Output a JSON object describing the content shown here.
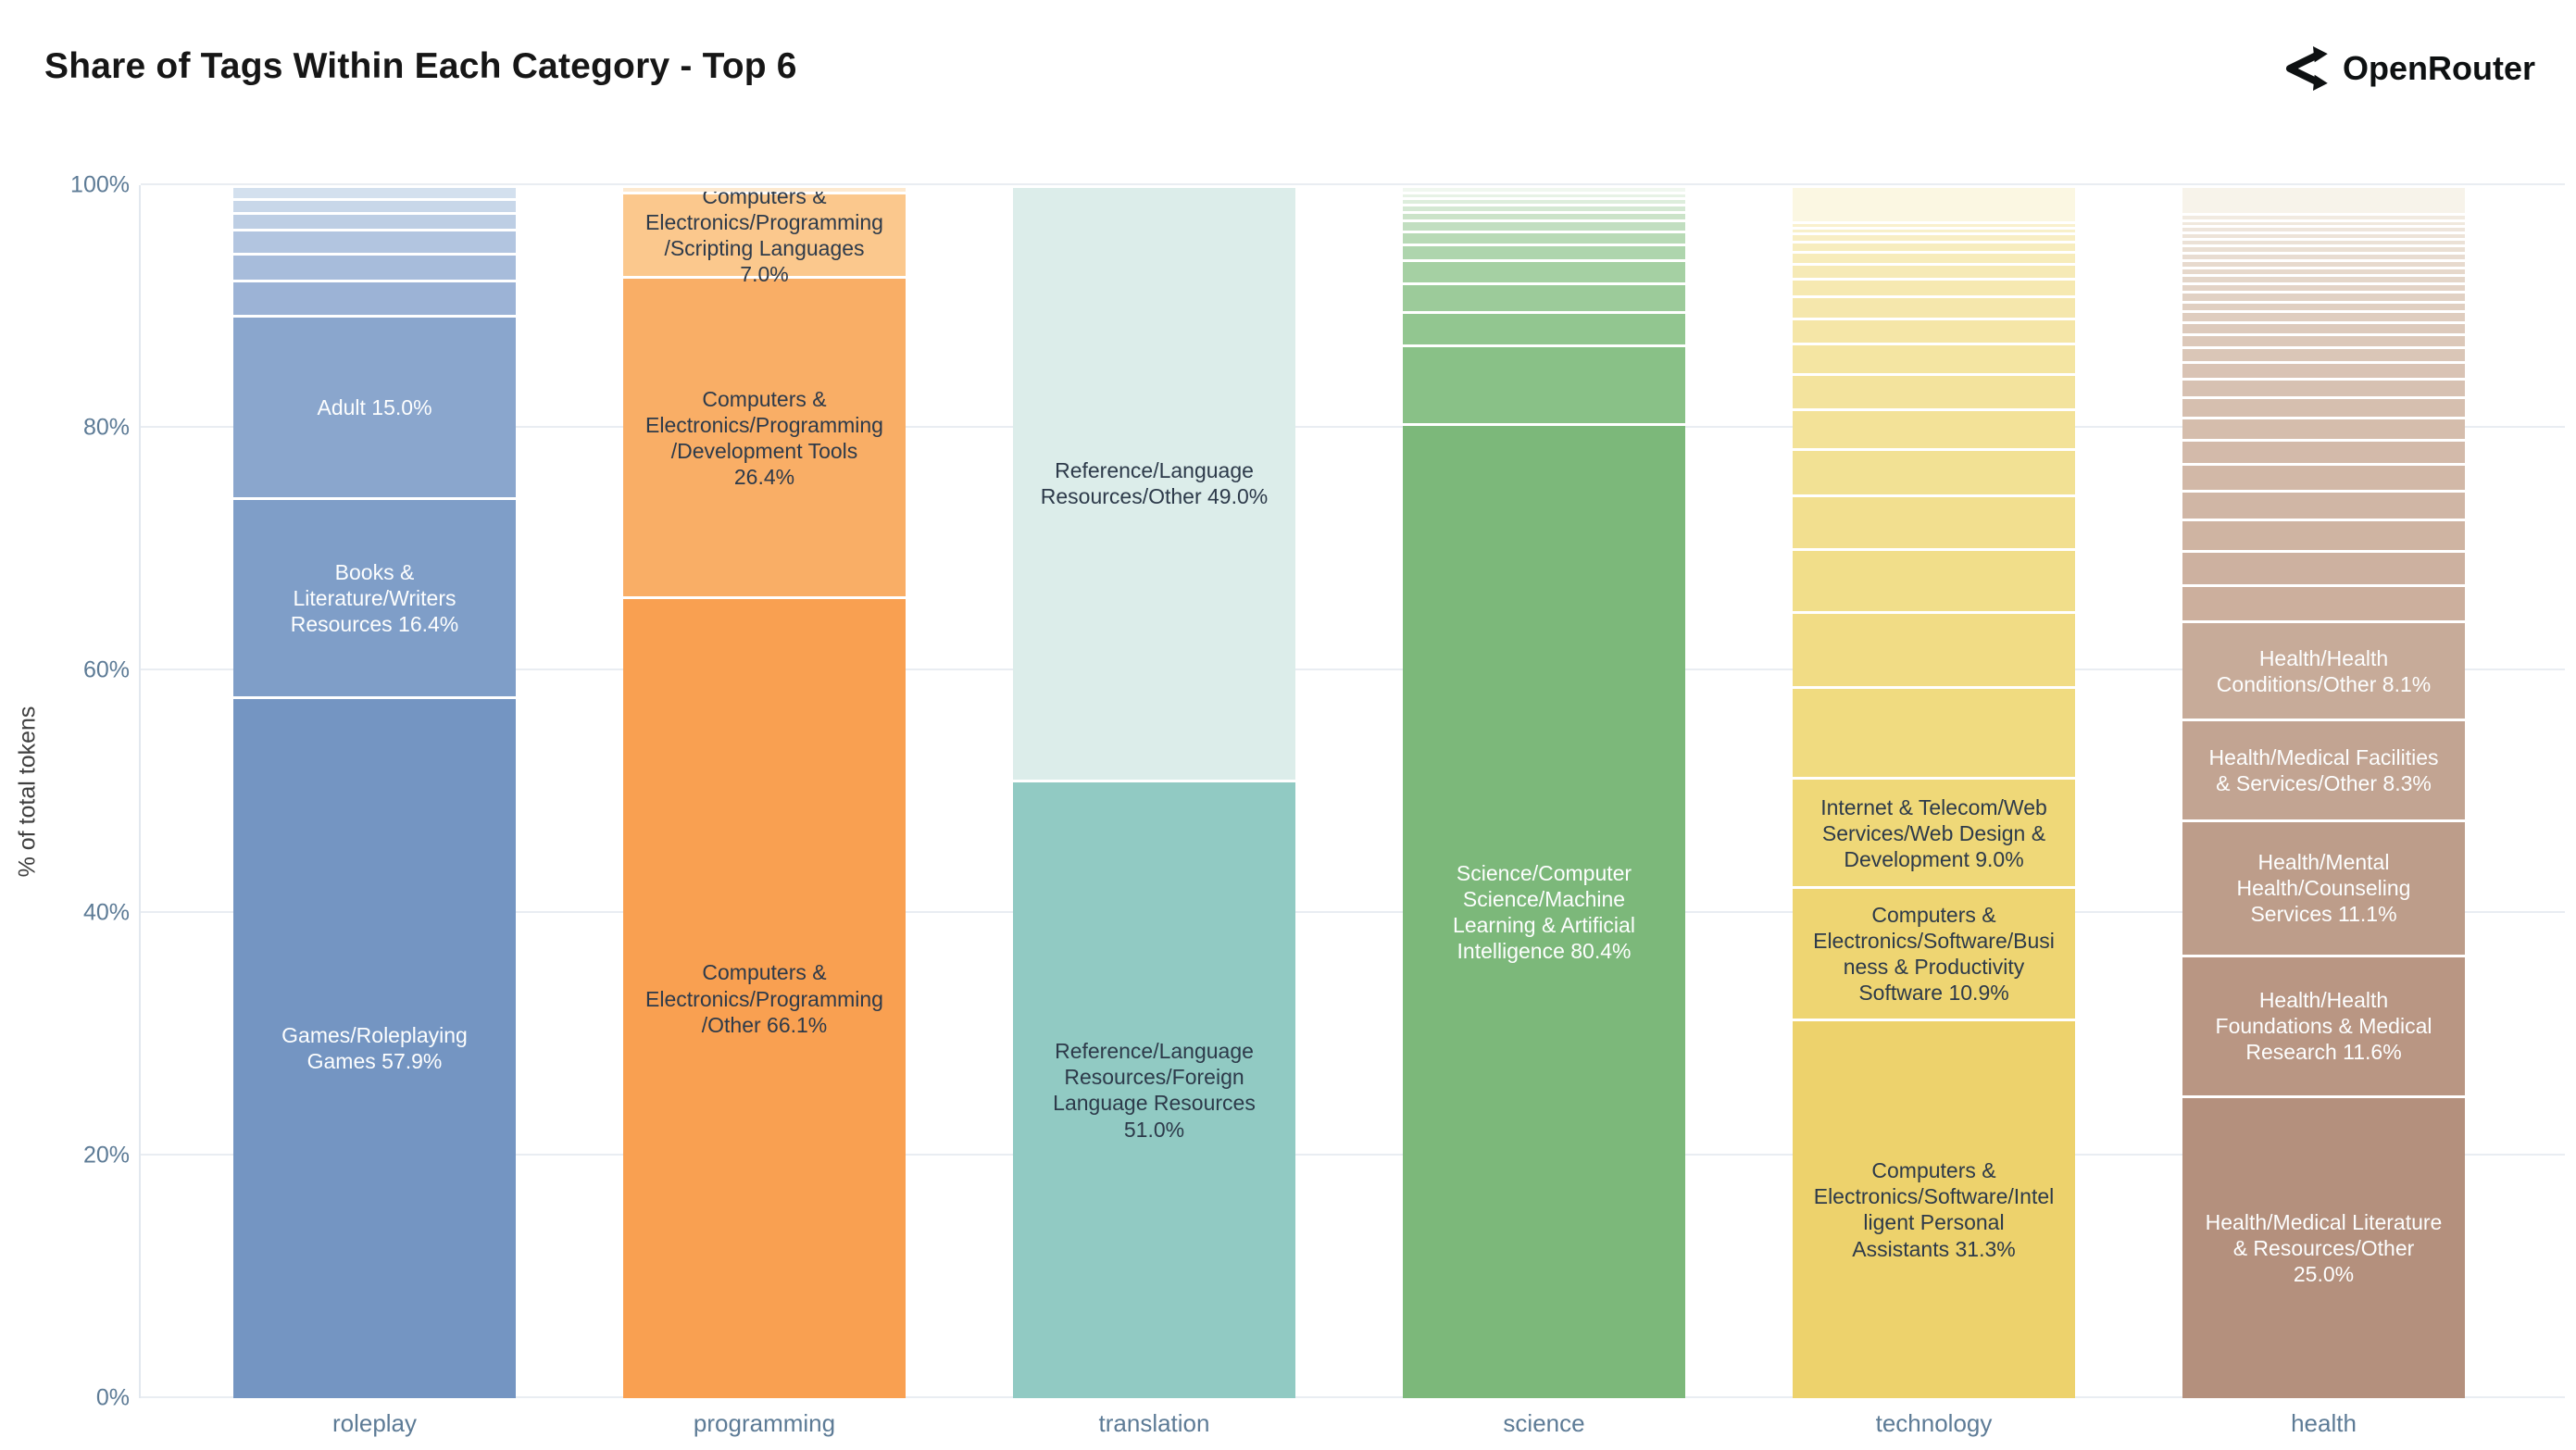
{
  "header": {
    "title": "Share of Tags Within Each Category - Top 6",
    "brand": "OpenRouter"
  },
  "axes": {
    "y_title": "% of total tokens",
    "y_ticks": [
      "0%",
      "20%",
      "40%",
      "60%",
      "80%",
      "100%"
    ]
  },
  "colors": {
    "grid": "#e9edf2",
    "axis_line": "#e2e8ef",
    "tick_text": "#5d7b96",
    "dark_label": "#2d3a4a",
    "light_label": "#fdfefe",
    "brand_text": "#0e1112"
  },
  "chart_data": {
    "type": "bar",
    "stacked": true,
    "orientation": "vertical",
    "title": "Share of Tags Within Each Category - Top 6",
    "ylabel": "% of total tokens",
    "xlabel": "",
    "ylim": [
      0,
      100
    ],
    "y_tick_labels": [
      "0%",
      "20%",
      "40%",
      "60%",
      "80%",
      "100%"
    ],
    "grid": true,
    "legend": false,
    "categories": [
      "roleplay",
      "programming",
      "translation",
      "science",
      "technology",
      "health"
    ],
    "bars": [
      {
        "category": "roleplay",
        "named": [
          {
            "label": "Games/Roleplaying Games",
            "pct": 57.9,
            "color": "#7495c2",
            "text_color": "#fdfefe"
          },
          {
            "label": "Books & Literature/Writers Resources",
            "pct": 16.4,
            "color": "#7f9ec8",
            "text_color": "#fdfefe"
          },
          {
            "label": "Adult",
            "pct": 15.0,
            "color": "#8aa6cd",
            "text_color": "#fdfefe"
          }
        ],
        "smalls": {
          "values": [
            2.9,
            2.2,
            2.0,
            1.4,
            1.1,
            1.1
          ],
          "color_from": "#9cb3d6",
          "color_to": "#d3e0ee"
        },
        "cap": null
      },
      {
        "category": "programming",
        "named": [
          {
            "label": "Computers & Electronics/Programming/Other",
            "pct": 66.1,
            "color": "#f9a051",
            "text_color": "#2d3a4a"
          },
          {
            "label": "Computers & Electronics/Programming/Development Tools",
            "pct": 26.4,
            "color": "#f9ae66",
            "text_color": "#2d3a4a"
          },
          {
            "label": "Computers & Electronics/Programming/Scripting Languages",
            "pct": 7.0,
            "color": "#fbc88d",
            "text_color": "#2d3a4a"
          }
        ],
        "smalls": {
          "values": [],
          "color_from": "#fde9cf",
          "color_to": "#fde9cf"
        },
        "cap": {
          "pct": 0.5,
          "color": "#fde9cf"
        }
      },
      {
        "category": "translation",
        "named": [
          {
            "label": "Reference/Language Resources/Foreign Language Resources",
            "pct": 51.0,
            "color": "#91cac3",
            "text_color": "#2d3a4a"
          },
          {
            "label": "Reference/Language Resources/Other",
            "pct": 49.0,
            "color": "#dcedea",
            "text_color": "#2d3a4a"
          }
        ],
        "smalls": {
          "values": [],
          "color_from": "#dcedea",
          "color_to": "#dcedea"
        },
        "cap": null
      },
      {
        "category": "science",
        "named": [
          {
            "label": "Science/Computer Science/Machine Learning & Artificial Intelligence",
            "pct": 80.4,
            "color": "#7cb87a",
            "text_color": "#fdfefe"
          }
        ],
        "smalls": {
          "values": [
            6.5,
            2.7,
            2.4,
            1.9,
            1.3,
            1.1,
            0.9,
            0.7,
            0.6,
            0.5,
            0.5,
            0.5
          ],
          "color_from": "#89c187",
          "color_to": "#f0f7ef"
        },
        "cap": null
      },
      {
        "category": "technology",
        "named": [
          {
            "label": "Computers & Electronics/Software/Intelligent Personal Assistants",
            "pct": 31.3,
            "color": "#edd26c",
            "text_color": "#2d3a4a"
          },
          {
            "label": "Computers & Electronics/Software/Business & Productivity Software",
            "pct": 10.9,
            "color": "#eed572",
            "text_color": "#2d3a4a"
          },
          {
            "label": "Internet & Telecom/Web Services/Web Design & Development",
            "pct": 9.0,
            "color": "#efd878",
            "text_color": "#2d3a4a"
          }
        ],
        "smalls": {
          "values": [
            7.5,
            6.2,
            5.2,
            4.4,
            3.8,
            3.3,
            2.9,
            2.5,
            2.1,
            1.8,
            1.5,
            1.2,
            1.0,
            0.8,
            0.7,
            0.5,
            0.4
          ],
          "color_from": "#f0db80",
          "color_to": "#f9f1ce"
        },
        "cap": {
          "pct": 3.0,
          "color": "#fbf7e2"
        }
      },
      {
        "category": "health",
        "named": [
          {
            "label": "Health/Medical Literature & Resources/Other",
            "pct": 25.0,
            "color": "#b4907d",
            "text_color": "#fdfefe"
          },
          {
            "label": "Health/Health Foundations & Medical Research",
            "pct": 11.6,
            "color": "#b99683",
            "text_color": "#fdfefe"
          },
          {
            "label": "Health/Mental Health/Counseling Services",
            "pct": 11.1,
            "color": "#bd9d8a",
            "text_color": "#fdfefe"
          },
          {
            "label": "Health/Medical Facilities & Services/Other",
            "pct": 8.3,
            "color": "#c2a492",
            "text_color": "#fdfefe"
          },
          {
            "label": "Health/Health Conditions/Other",
            "pct": 8.1,
            "color": "#c7ab99",
            "text_color": "#fdfefe"
          }
        ],
        "smalls": {
          "values": [
            3.0,
            2.8,
            2.6,
            2.4,
            2.2,
            2.0,
            1.8,
            1.7,
            1.5,
            1.4,
            1.2,
            1.1,
            1.0,
            0.9,
            0.8,
            0.8,
            0.7,
            0.7,
            0.6,
            0.6,
            0.6,
            0.6,
            0.6,
            0.5,
            0.5,
            0.5,
            0.5
          ],
          "color_from": "#ccaf9d",
          "color_to": "#f1eae0"
        },
        "cap": {
          "pct": 2.3,
          "color": "#f7f3ea"
        }
      }
    ]
  }
}
